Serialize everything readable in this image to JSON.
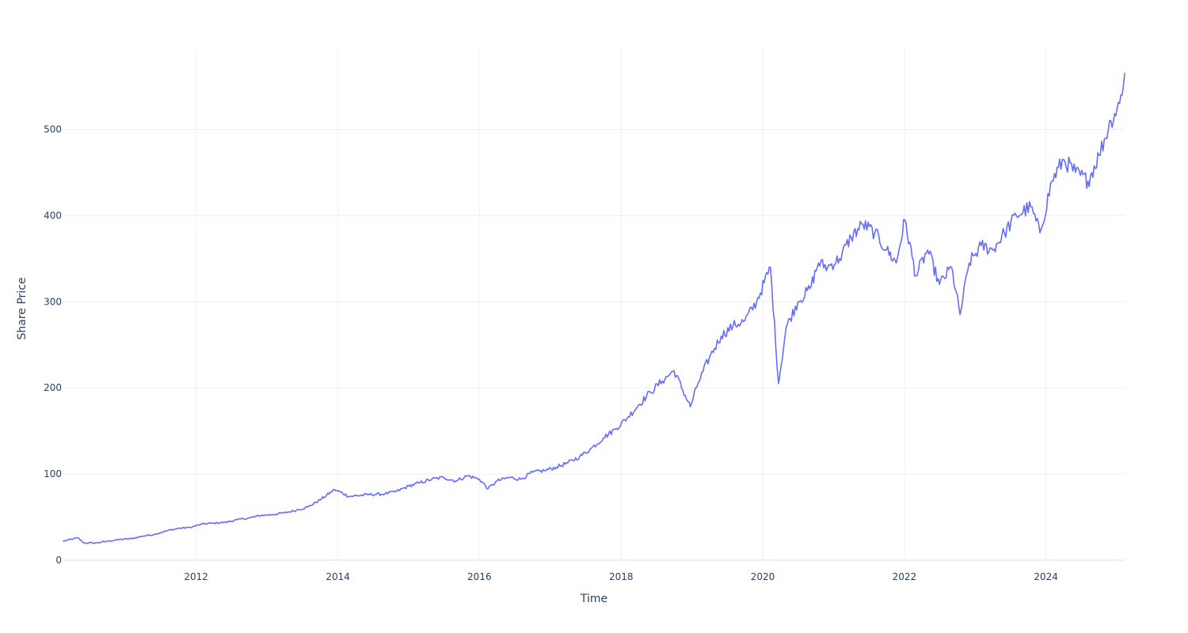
{
  "chart_data": {
    "type": "line",
    "title": "",
    "xlabel": "Time",
    "ylabel": "Share Price",
    "x_type": "date",
    "xlim": [
      "2010-02-15",
      "2025-02-10"
    ],
    "ylim": [
      0,
      595
    ],
    "x_ticks": [
      "2012",
      "2014",
      "2016",
      "2018",
      "2020",
      "2022",
      "2024"
    ],
    "x_tick_dates": [
      "2012-01-01",
      "2014-01-01",
      "2016-01-01",
      "2018-01-01",
      "2020-01-01",
      "2022-01-01",
      "2024-01-01"
    ],
    "y_ticks": [
      0,
      100,
      200,
      300,
      400,
      500
    ],
    "grid": true,
    "legend": "none",
    "colors": {
      "line": "#636efa",
      "grid": "#ebf0f8",
      "text": "#2a3f5f",
      "background": "#ffffff"
    },
    "series": [
      {
        "x": [
          "2010-02-15",
          "2010-05-01",
          "2010-06-01",
          "2010-08-01",
          "2010-10-01",
          "2010-12-01",
          "2011-02-01",
          "2011-04-01",
          "2011-06-01",
          "2011-08-01",
          "2011-10-01",
          "2011-12-01",
          "2012-02-01",
          "2012-04-01",
          "2012-06-01",
          "2012-08-01",
          "2012-10-01",
          "2012-12-01",
          "2013-02-01",
          "2013-04-01",
          "2013-06-01",
          "2013-08-01",
          "2013-10-01",
          "2013-12-15",
          "2014-03-01",
          "2014-06-01",
          "2014-09-01",
          "2014-11-01",
          "2015-01-01",
          "2015-03-01",
          "2015-05-01",
          "2015-07-01",
          "2015-09-01",
          "2015-11-01",
          "2016-01-01",
          "2016-02-15",
          "2016-04-01",
          "2016-06-01",
          "2016-08-01",
          "2016-10-01",
          "2016-12-01",
          "2017-02-01",
          "2017-04-01",
          "2017-06-01",
          "2017-08-01",
          "2017-10-01",
          "2017-12-01",
          "2018-02-01",
          "2018-04-01",
          "2018-06-01",
          "2018-08-01",
          "2018-10-01",
          "2018-12-24",
          "2019-02-01",
          "2019-04-01",
          "2019-06-01",
          "2019-08-01",
          "2019-10-01",
          "2019-12-01",
          "2020-02-10",
          "2020-03-23",
          "2020-05-01",
          "2020-07-01",
          "2020-09-01",
          "2020-10-15",
          "2020-12-01",
          "2021-02-01",
          "2021-04-01",
          "2021-06-01",
          "2021-08-01",
          "2021-10-01",
          "2021-11-20",
          "2022-01-03",
          "2022-03-01",
          "2022-05-01",
          "2022-07-01",
          "2022-09-01",
          "2022-10-15",
          "2022-12-01",
          "2023-02-01",
          "2023-04-01",
          "2023-06-01",
          "2023-08-01",
          "2023-10-15",
          "2023-12-01",
          "2024-02-01",
          "2024-04-01",
          "2024-06-01",
          "2024-08-05",
          "2024-10-01",
          "2024-12-01",
          "2025-01-15",
          "2025-02-10"
        ],
        "y": [
          22,
          26,
          20,
          20,
          22,
          24,
          25,
          28,
          30,
          34,
          37,
          38,
          42,
          43,
          44,
          47,
          49,
          52,
          53,
          55,
          58,
          62,
          70,
          82,
          74,
          76,
          77,
          80,
          86,
          90,
          94,
          96,
          92,
          98,
          94,
          83,
          92,
          96,
          94,
          102,
          104,
          108,
          113,
          120,
          130,
          142,
          152,
          165,
          180,
          195,
          208,
          220,
          178,
          205,
          235,
          260,
          272,
          278,
          300,
          340,
          205,
          270,
          300,
          315,
          345,
          340,
          350,
          375,
          390,
          380,
          360,
          345,
          395,
          330,
          360,
          320,
          340,
          285,
          345,
          365,
          360,
          380,
          400,
          410,
          380,
          440,
          465,
          450,
          440,
          470,
          510,
          530,
          565
        ]
      }
    ]
  }
}
